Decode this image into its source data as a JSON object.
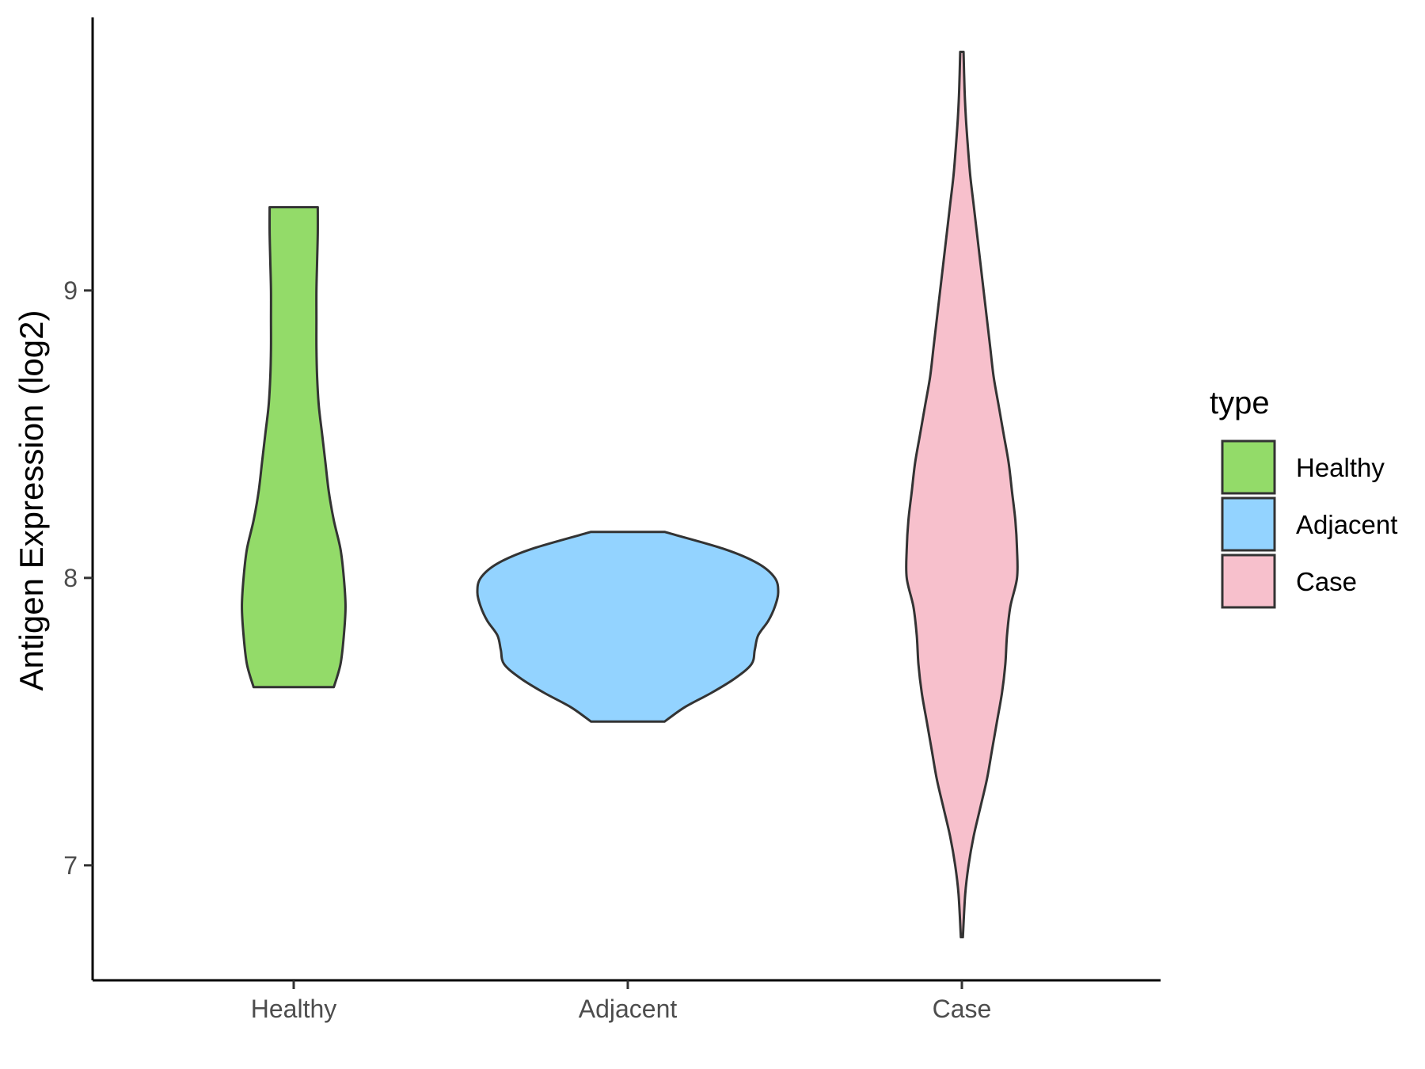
{
  "chart_data": {
    "type": "violin",
    "categories": [
      "Healthy",
      "Adjacent",
      "Case"
    ],
    "ylabel": "Antigen Expression (log2)",
    "xlabel": "",
    "ylim": [
      6.6,
      9.95
    ],
    "yticks": [
      7,
      8,
      9
    ],
    "legend": {
      "title": "type",
      "position": "right",
      "entries": [
        "Healthy",
        "Adjacent",
        "Case"
      ]
    },
    "grid": false,
    "series": [
      {
        "name": "Healthy",
        "color": "#93DB69",
        "min": 7.62,
        "max": 9.29,
        "density": [
          [
            7.62,
            0.12
          ],
          [
            7.7,
            0.14
          ],
          [
            7.8,
            0.15
          ],
          [
            7.9,
            0.155
          ],
          [
            8.0,
            0.15
          ],
          [
            8.1,
            0.14
          ],
          [
            8.2,
            0.12
          ],
          [
            8.3,
            0.105
          ],
          [
            8.4,
            0.095
          ],
          [
            8.5,
            0.085
          ],
          [
            8.6,
            0.075
          ],
          [
            8.7,
            0.07
          ],
          [
            8.8,
            0.068
          ],
          [
            8.9,
            0.068
          ],
          [
            9.0,
            0.068
          ],
          [
            9.1,
            0.07
          ],
          [
            9.2,
            0.072
          ],
          [
            9.29,
            0.072
          ]
        ]
      },
      {
        "name": "Adjacent",
        "color": "#93D3FF",
        "min": 7.5,
        "max": 8.16,
        "density": [
          [
            7.5,
            0.11
          ],
          [
            7.55,
            0.17
          ],
          [
            7.6,
            0.25
          ],
          [
            7.65,
            0.32
          ],
          [
            7.7,
            0.37
          ],
          [
            7.75,
            0.38
          ],
          [
            7.8,
            0.39
          ],
          [
            7.85,
            0.42
          ],
          [
            7.9,
            0.44
          ],
          [
            7.95,
            0.45
          ],
          [
            8.0,
            0.44
          ],
          [
            8.05,
            0.39
          ],
          [
            8.1,
            0.29
          ],
          [
            8.16,
            0.11
          ]
        ]
      },
      {
        "name": "Case",
        "color": "#F7C0CC",
        "min": 6.75,
        "max": 9.83,
        "density": [
          [
            6.75,
            0.003
          ],
          [
            6.9,
            0.01
          ],
          [
            7.0,
            0.02
          ],
          [
            7.1,
            0.035
          ],
          [
            7.2,
            0.055
          ],
          [
            7.3,
            0.075
          ],
          [
            7.4,
            0.09
          ],
          [
            7.5,
            0.105
          ],
          [
            7.6,
            0.12
          ],
          [
            7.7,
            0.13
          ],
          [
            7.8,
            0.135
          ],
          [
            7.9,
            0.145
          ],
          [
            8.0,
            0.165
          ],
          [
            8.1,
            0.165
          ],
          [
            8.2,
            0.16
          ],
          [
            8.3,
            0.15
          ],
          [
            8.4,
            0.14
          ],
          [
            8.5,
            0.125
          ],
          [
            8.6,
            0.11
          ],
          [
            8.7,
            0.095
          ],
          [
            8.8,
            0.085
          ],
          [
            8.9,
            0.075
          ],
          [
            9.0,
            0.065
          ],
          [
            9.1,
            0.055
          ],
          [
            9.2,
            0.045
          ],
          [
            9.3,
            0.035
          ],
          [
            9.4,
            0.025
          ],
          [
            9.5,
            0.018
          ],
          [
            9.6,
            0.012
          ],
          [
            9.7,
            0.008
          ],
          [
            9.83,
            0.005
          ]
        ]
      }
    ]
  }
}
